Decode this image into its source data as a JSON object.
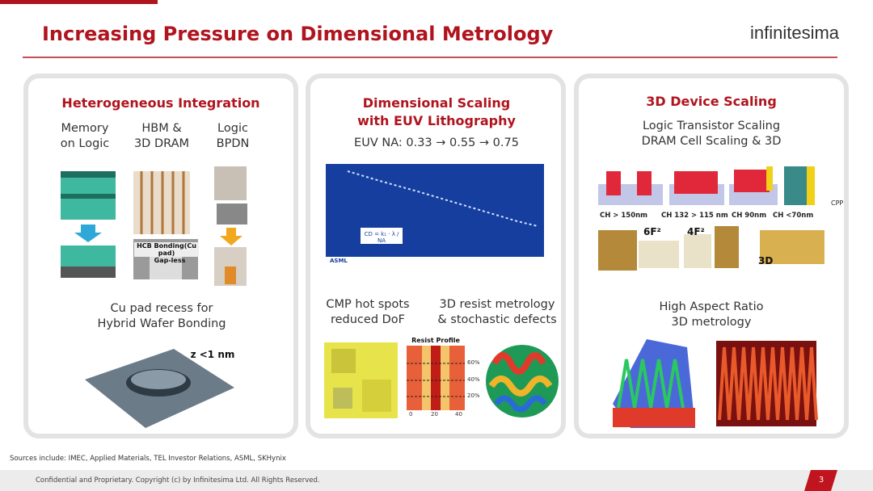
{
  "header": {
    "title": "Increasing Pressure on Dimensional Metrology",
    "logo": "infinitesima"
  },
  "panels": [
    {
      "title": "Heterogeneous Integration",
      "columns": [
        "Memory\non Logic",
        "HBM &\n3D DRAM",
        "Logic\nBPDN"
      ],
      "image_labels": [
        "HCB Bonding(Cu pad)",
        "Gap-less"
      ],
      "caption": "Cu pad recess for\nHybrid Wafer Bonding",
      "annotation": "z <1 nm"
    },
    {
      "title": "Dimensional Scaling\nwith EUV Lithography",
      "subtitle": "EUV NA: 0.33 → 0.55 → 0.75",
      "chart_formula": "CD = k₁ · λ / NA",
      "chart_brand": "ASML",
      "captions": [
        "CMP hot spots\nreduced DoF",
        "3D resist metrology\n& stochastic defects"
      ],
      "resist_profile": {
        "title": "Resist Profile",
        "y_labels": [
          "60%",
          "40%",
          "20%"
        ],
        "x_labels": [
          "0",
          "20",
          "40"
        ]
      }
    },
    {
      "title": "3D Device Scaling",
      "subtitle": "Logic Transistor Scaling\nDRAM Cell Scaling & 3D",
      "node_labels": [
        "CH > 150nm",
        "CH 132 > 115 nm",
        "CH 90nm",
        "CH <70nm"
      ],
      "pitch_label": "CPP",
      "cell_labels": [
        "6F²",
        "4F²",
        "3D"
      ],
      "caption": "High Aspect Ratio\n3D metrology"
    }
  ],
  "footer": {
    "sources": "Sources include: IMEC, Applied Materials, TEL Investor Relations, ASML, SKHynix",
    "confidential": "Confidential and Proprietary. Copyright (c) by Infinitesima Ltd. All Rights Reserved.",
    "page_number": "3"
  }
}
